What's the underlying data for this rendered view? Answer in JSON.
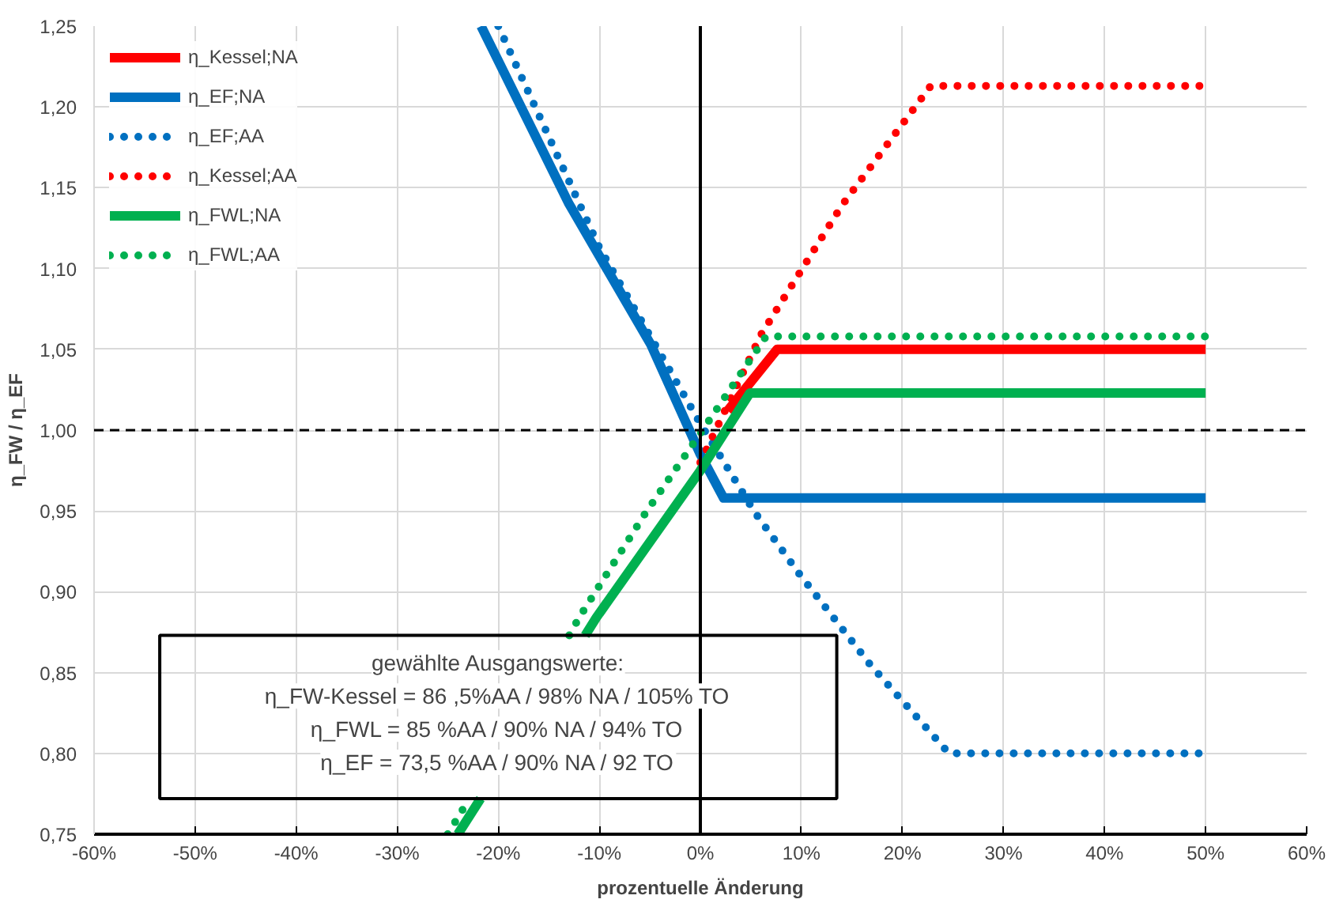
{
  "chart_data": {
    "type": "line",
    "xlabel": "prozentuelle Änderung",
    "ylabel": "η_FW / η_EF",
    "xlim": [
      -60,
      60
    ],
    "ylim": [
      0.75,
      1.25
    ],
    "xticks": [
      {
        "value": -60,
        "label": "-60%"
      },
      {
        "value": -50,
        "label": "-50%"
      },
      {
        "value": -40,
        "label": "-40%"
      },
      {
        "value": -30,
        "label": "-30%"
      },
      {
        "value": -20,
        "label": "-20%"
      },
      {
        "value": -10,
        "label": "-10%"
      },
      {
        "value": 0,
        "label": "0%"
      },
      {
        "value": 10,
        "label": "10%"
      },
      {
        "value": 20,
        "label": "20%"
      },
      {
        "value": 30,
        "label": "30%"
      },
      {
        "value": 40,
        "label": "40%"
      },
      {
        "value": 50,
        "label": "50%"
      },
      {
        "value": 60,
        "label": "60%"
      }
    ],
    "yticks": [
      {
        "value": 0.75,
        "label": "0,75"
      },
      {
        "value": 0.8,
        "label": "0,80"
      },
      {
        "value": 0.85,
        "label": "0,85"
      },
      {
        "value": 0.9,
        "label": "0,90"
      },
      {
        "value": 0.95,
        "label": "0,95"
      },
      {
        "value": 1.0,
        "label": "1,00"
      },
      {
        "value": 1.05,
        "label": "1,05"
      },
      {
        "value": 1.1,
        "label": "1,10"
      },
      {
        "value": 1.15,
        "label": "1,15"
      },
      {
        "value": 1.2,
        "label": "1,20"
      },
      {
        "value": 1.25,
        "label": "1,25"
      }
    ],
    "grid": true,
    "legend": "top left",
    "series": [
      {
        "name": "η_Kessel;NA",
        "color": "#ff0000",
        "line_style": "solid",
        "x": [
          2.7,
          7.6,
          50
        ],
        "values": [
          1.012,
          1.05,
          1.05
        ]
      },
      {
        "name": "η_EF;NA",
        "color": "#0070c0",
        "line_style": "solid",
        "x": [
          -21.7,
          -13,
          -4.9,
          0,
          2.3,
          50
        ],
        "values": [
          1.25,
          1.14,
          1.053,
          0.985,
          0.958,
          0.958
        ]
      },
      {
        "name": "η_EF;AA",
        "color": "#0070c0",
        "line_style": "dotted",
        "x": [
          -20,
          -10,
          0,
          5.4,
          9.8,
          16.8,
          24.6,
          50
        ],
        "values": [
          1.25,
          1.113,
          1.004,
          0.949,
          0.911,
          0.855,
          0.8,
          0.8
        ]
      },
      {
        "name": "η_Kessel;AA",
        "color": "#ff0000",
        "line_style": "dotted",
        "x": [
          0,
          6,
          14,
          22.8,
          50
        ],
        "values": [
          0.98,
          1.059,
          1.139,
          1.213,
          1.213
        ]
      },
      {
        "name": "η_FWL;NA",
        "color": "#00b050",
        "line_style": "solid",
        "x": [
          -24,
          -21.75,
          -17,
          -11.4,
          -10.3,
          0,
          4.9,
          50
        ],
        "values": [
          0.75,
          0.772,
          null,
          0.873,
          0.884,
          0.975,
          1.023,
          1.023
        ]
      },
      {
        "name": "η_FWL;AA",
        "color": "#00b050",
        "line_style": "dotted",
        "x": [
          -25,
          -22.86,
          -18,
          -12.97,
          -12,
          -5.4,
          0,
          6.5,
          50
        ],
        "values": [
          0.75,
          0.772,
          null,
          0.873,
          0.884,
          0.949,
          0.998,
          1.058,
          1.058
        ]
      }
    ],
    "ref_lines": [
      {
        "axis": "y",
        "value": 1.0,
        "line_style": "dashed",
        "color": "#000000"
      },
      {
        "axis": "x",
        "value": 0,
        "line_style": "solid",
        "color": "#000000"
      }
    ],
    "annotations": [
      "gewählte Ausgangswerte:",
      "η_FW-Kessel = 86 ,5%AA / 98% NA / 105% TO",
      "η_FWL = 85 %AA / 90% NA / 94% TO",
      "η_EF = 73,5 %AA / 90% NA / 92 TO"
    ]
  }
}
